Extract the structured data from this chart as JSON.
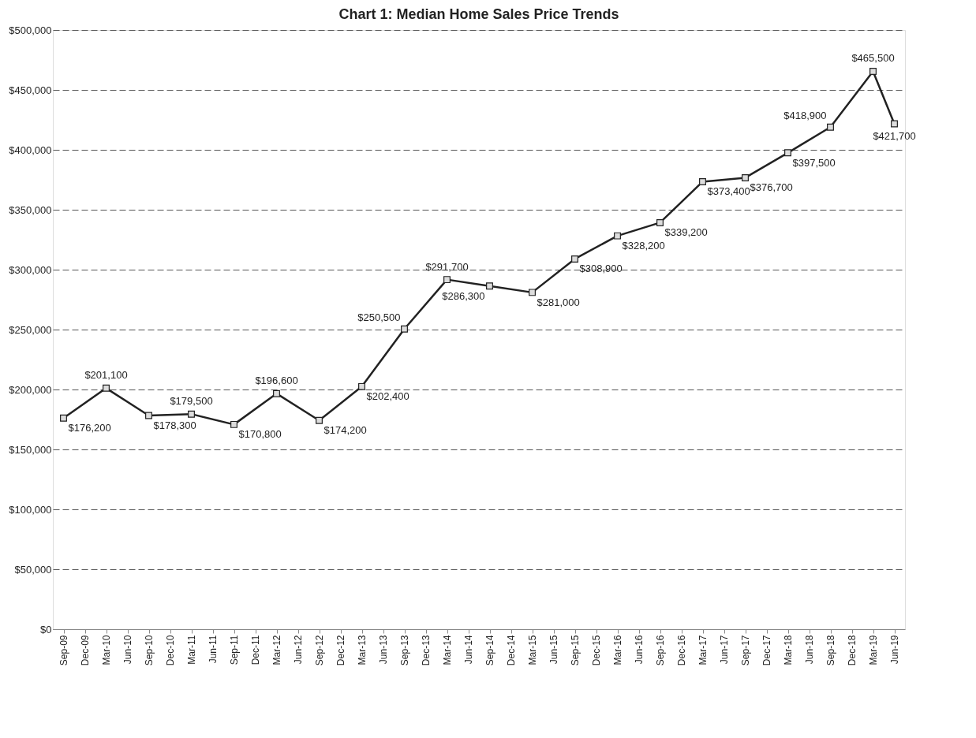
{
  "chart_data": {
    "type": "line",
    "title": "Chart 1: Median Home Sales Price Trends",
    "categories": [
      "Sep-09",
      "Dec-09",
      "Mar-10",
      "Jun-10",
      "Sep-10",
      "Dec-10",
      "Mar-11",
      "Jun-11",
      "Sep-11",
      "Dec-11",
      "Mar-12",
      "Jun-12",
      "Sep-12",
      "Dec-12",
      "Mar-13",
      "Jun-13",
      "Sep-13",
      "Dec-13",
      "Mar-14",
      "Jun-14",
      "Sep-14",
      "Dec-14",
      "Mar-15",
      "Jun-15",
      "Sep-15",
      "Dec-15",
      "Mar-16",
      "Jun-16",
      "Sep-16",
      "Dec-16",
      "Mar-17",
      "Jun-17",
      "Sep-17",
      "Dec-17",
      "Mar-18",
      "Jun-18",
      "Sep-18",
      "Dec-18",
      "Mar-19",
      "Jun-19"
    ],
    "series": [
      {
        "color": "#222222",
        "values": [
          176200,
          null,
          201100,
          null,
          178300,
          null,
          179500,
          null,
          170800,
          null,
          196600,
          null,
          174200,
          null,
          202400,
          null,
          250500,
          null,
          291700,
          null,
          286300,
          null,
          281000,
          null,
          308900,
          null,
          328200,
          null,
          339200,
          null,
          373400,
          null,
          376700,
          null,
          397500,
          null,
          418900,
          null,
          465500,
          421700
        ],
        "value_labels": [
          "$176,200",
          null,
          "$201,100",
          null,
          "$178,300",
          null,
          "$179,500",
          null,
          "$170,800",
          null,
          "$196,600",
          null,
          "$174,200",
          null,
          "$202,400",
          null,
          "$250,500",
          null,
          "$291,700",
          null,
          "$286,300",
          null,
          "$281,000",
          null,
          "$308,900",
          null,
          "$328,200",
          null,
          "$339,200",
          null,
          "$373,400",
          null,
          "$376,700",
          null,
          "$397,500",
          null,
          "$418,900",
          null,
          "$465,500",
          "$421,700"
        ]
      }
    ],
    "ylim": [
      0,
      500000
    ],
    "yticks": [
      {
        "value": 0,
        "label": "$0"
      },
      {
        "value": 50000,
        "label": "$50,000"
      },
      {
        "value": 100000,
        "label": "$100,000"
      },
      {
        "value": 150000,
        "label": "$150,000"
      },
      {
        "value": 200000,
        "label": "$200,000"
      },
      {
        "value": 250000,
        "label": "$250,000"
      },
      {
        "value": 300000,
        "label": "$300,000"
      },
      {
        "value": 350000,
        "label": "$350,000"
      },
      {
        "value": 400000,
        "label": "$400,000"
      },
      {
        "value": 450000,
        "label": "$450,000"
      },
      {
        "value": 500000,
        "label": "$500,000"
      }
    ],
    "grid": "y",
    "marker": "square",
    "line_style": "solid"
  }
}
